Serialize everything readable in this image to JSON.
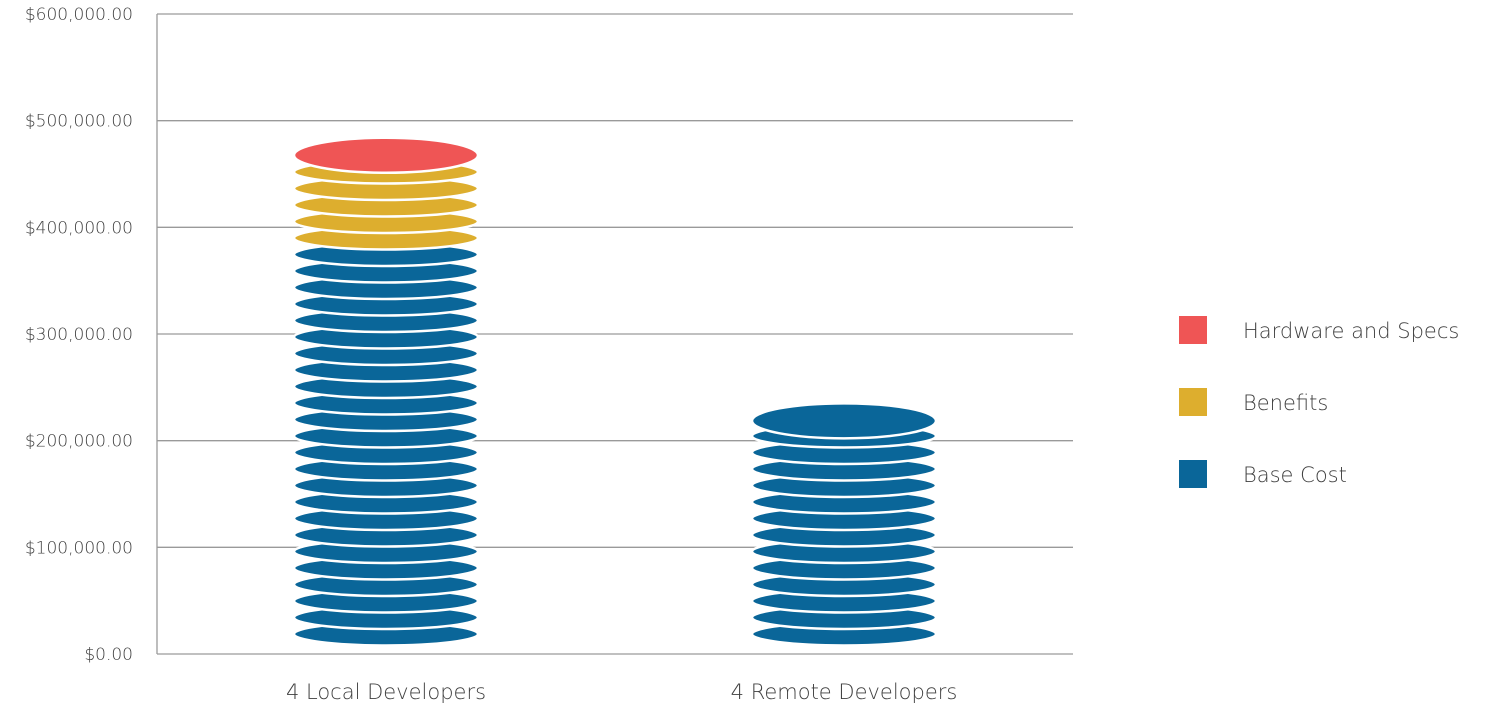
{
  "chart_data": {
    "type": "bar",
    "stacked": true,
    "categories": [
      "4 Local Developers",
      "4 Remote Developers"
    ],
    "series": [
      {
        "name": "Base Cost",
        "values": [
          390000,
          235000
        ],
        "color": "#0A6699"
      },
      {
        "name": "Benefits",
        "values": [
          64000,
          0
        ],
        "color": "#DDAE2E"
      },
      {
        "name": "Hardware and Specs",
        "values": [
          30000,
          0
        ],
        "color": "#EF5555"
      }
    ],
    "ylim": [
      0,
      600000
    ],
    "yticks": [
      "$0.00",
      "$100,000.00",
      "$200,000.00",
      "$300,000.00",
      "$400,000.00",
      "$500,000.00",
      "$600,000.00"
    ],
    "grid": true,
    "legend_position": "right",
    "title": "",
    "xlabel": "",
    "ylabel": ""
  }
}
